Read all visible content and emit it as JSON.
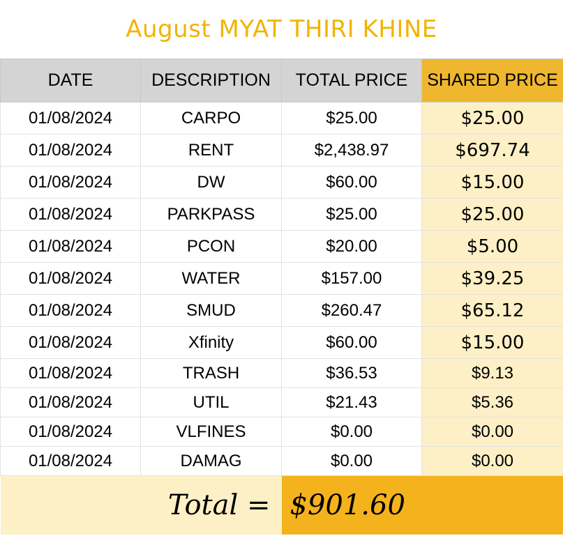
{
  "title": "August MYAT THIRI KHINE",
  "headers": [
    "DATE",
    "DESCRIPTION",
    "TOTAL PRICE",
    "SHARED PRICE"
  ],
  "rows": [
    {
      "date": "01/08/2024",
      "description": "CARPO",
      "total": "$25.00",
      "shared": "$25.00"
    },
    {
      "date": "01/08/2024",
      "description": "RENT",
      "total": "$2,438.97",
      "shared": "$697.74"
    },
    {
      "date": "01/08/2024",
      "description": "DW",
      "total": "$60.00",
      "shared": "$15.00"
    },
    {
      "date": "01/08/2024",
      "description": "PARKPASS",
      "total": "$25.00",
      "shared": "$25.00"
    },
    {
      "date": "01/08/2024",
      "description": "PCON",
      "total": "$20.00",
      "shared": "$5.00"
    },
    {
      "date": "01/08/2024",
      "description": "WATER",
      "total": "$157.00",
      "shared": "$39.25"
    },
    {
      "date": "01/08/2024",
      "description": "SMUD",
      "total": "$260.47",
      "shared": "$65.12"
    },
    {
      "date": "01/08/2024",
      "description": "Xfinity",
      "total": "$60.00",
      "shared": "$15.00"
    },
    {
      "date": "01/08/2024",
      "description": "TRASH",
      "total": "$36.53",
      "shared": "$9.13"
    },
    {
      "date": "01/08/2024",
      "description": "UTIL",
      "total": "$21.43",
      "shared": "$5.36"
    },
    {
      "date": "01/08/2024",
      "description": "VLFINES",
      "total": "$0.00",
      "shared": "$0.00"
    },
    {
      "date": "01/08/2024",
      "description": "DAMAG",
      "total": "$0.00",
      "shared": "$0.00"
    }
  ],
  "total_label": "Total =",
  "total_value": "$901.60"
}
